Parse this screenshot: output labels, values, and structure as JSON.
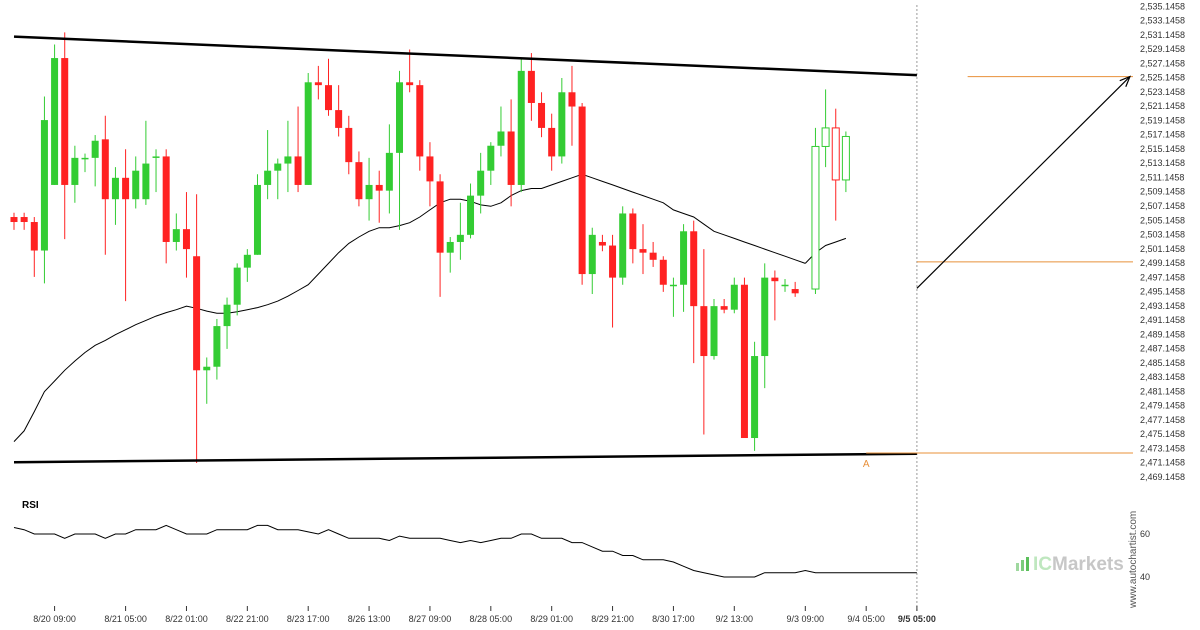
{
  "chart_data": {
    "type": "candlestick",
    "instrument": "",
    "colors": {
      "up": "#33cc33",
      "down": "#ff2222",
      "moving_average": "#000000",
      "trendline": "#000000",
      "level_line": "#e8903a",
      "projection_arrow": "#000000",
      "rsi_line": "#000000",
      "background": "#ffffff"
    },
    "price_axis": {
      "min": 2469.1458,
      "max": 2535.1458,
      "step": 2,
      "ticks": [
        "2,535.1458",
        "2,533.1458",
        "2,531.1458",
        "2,529.1458",
        "2,527.1458",
        "2,525.1458",
        "2,523.1458",
        "2,521.1458",
        "2,519.1458",
        "2,517.1458",
        "2,515.1458",
        "2,513.1458",
        "2,511.1458",
        "2,509.1458",
        "2,507.1458",
        "2,505.1458",
        "2,503.1458",
        "2,501.1458",
        "2,499.1458",
        "2,497.1458",
        "2,495.1458",
        "2,493.1458",
        "2,491.1458",
        "2,489.1458",
        "2,487.1458",
        "2,485.1458",
        "2,483.1458",
        "2,481.1458",
        "2,479.1458",
        "2,477.1458",
        "2,475.1458",
        "2,473.1458",
        "2,471.1458",
        "2,469.1458"
      ]
    },
    "time_axis": {
      "labels": [
        {
          "label": "8/20 09:00",
          "bar": 4
        },
        {
          "label": "8/21 05:00",
          "bar": 11
        },
        {
          "label": "8/22 01:00",
          "bar": 17
        },
        {
          "label": "8/22 21:00",
          "bar": 23
        },
        {
          "label": "8/23 17:00",
          "bar": 29
        },
        {
          "label": "8/26 13:00",
          "bar": 35
        },
        {
          "label": "8/27 09:00",
          "bar": 41
        },
        {
          "label": "8/28 05:00",
          "bar": 47
        },
        {
          "label": "8/29 01:00",
          "bar": 53
        },
        {
          "label": "8/29 21:00",
          "bar": 59
        },
        {
          "label": "8/30 17:00",
          "bar": 65
        },
        {
          "label": "9/2 13:00",
          "bar": 71
        },
        {
          "label": "9/3 09:00",
          "bar": 78
        },
        {
          "label": "9/4 05:00",
          "bar": 84
        },
        {
          "label": "9/5 05:00",
          "bar": 89,
          "bold": true
        }
      ]
    },
    "candles": [
      {
        "o": 2505.6,
        "h": 2506.2,
        "l": 2503.8,
        "c": 2504.9
      },
      {
        "o": 2505.6,
        "h": 2506.2,
        "l": 2503.8,
        "c": 2504.9
      },
      {
        "o": 2504.9,
        "h": 2505.6,
        "l": 2497.2,
        "c": 2500.9
      },
      {
        "o": 2500.9,
        "h": 2522.5,
        "l": 2496.3,
        "c": 2519.2
      },
      {
        "o": 2510.1,
        "h": 2529.8,
        "l": 2510.1,
        "c": 2527.9
      },
      {
        "o": 2527.9,
        "h": 2531.5,
        "l": 2502.5,
        "c": 2510.1
      },
      {
        "o": 2510.1,
        "h": 2515.6,
        "l": 2507.6,
        "c": 2513.9
      },
      {
        "o": 2513.9,
        "h": 2514.5,
        "l": 2511.9,
        "c": 2513.9
      },
      {
        "o": 2513.9,
        "h": 2517.1,
        "l": 2509.9,
        "c": 2516.3
      },
      {
        "o": 2516.5,
        "h": 2519.8,
        "l": 2500.3,
        "c": 2508.1
      },
      {
        "o": 2508.1,
        "h": 2512.6,
        "l": 2504.5,
        "c": 2511.1
      },
      {
        "o": 2511.1,
        "h": 2515.1,
        "l": 2493.8,
        "c": 2508.1
      },
      {
        "o": 2508.1,
        "h": 2514.1,
        "l": 2506.8,
        "c": 2512.1
      },
      {
        "o": 2508.1,
        "h": 2519.1,
        "l": 2507.3,
        "c": 2513.1
      },
      {
        "o": 2514.1,
        "h": 2515.1,
        "l": 2509.1,
        "c": 2514.1
      },
      {
        "o": 2514.1,
        "h": 2515.1,
        "l": 2499.1,
        "c": 2502.1
      },
      {
        "o": 2502.1,
        "h": 2506.1,
        "l": 2500.9,
        "c": 2503.9
      },
      {
        "o": 2503.9,
        "h": 2509.1,
        "l": 2497.1,
        "c": 2501.1
      },
      {
        "o": 2500.1,
        "h": 2508.8,
        "l": 2471.1,
        "c": 2484.1
      },
      {
        "o": 2484.1,
        "h": 2485.9,
        "l": 2479.4,
        "c": 2484.6
      },
      {
        "o": 2484.6,
        "h": 2491.3,
        "l": 2482.8,
        "c": 2490.3
      },
      {
        "o": 2490.3,
        "h": 2494.3,
        "l": 2487.1,
        "c": 2493.3
      },
      {
        "o": 2493.3,
        "h": 2499.1,
        "l": 2491.8,
        "c": 2498.5
      },
      {
        "o": 2498.5,
        "h": 2501.1,
        "l": 2496.5,
        "c": 2500.3
      },
      {
        "o": 2500.3,
        "h": 2511.6,
        "l": 2500.3,
        "c": 2510.1
      },
      {
        "o": 2510.1,
        "h": 2517.8,
        "l": 2508.1,
        "c": 2512.1
      },
      {
        "o": 2512.1,
        "h": 2513.8,
        "l": 2508.1,
        "c": 2513.1
      },
      {
        "o": 2513.1,
        "h": 2519.1,
        "l": 2509.1,
        "c": 2514.1
      },
      {
        "o": 2514.1,
        "h": 2521.1,
        "l": 2509.1,
        "c": 2510.1
      },
      {
        "o": 2510.1,
        "h": 2525.8,
        "l": 2510.1,
        "c": 2524.5
      },
      {
        "o": 2524.5,
        "h": 2526.8,
        "l": 2522.1,
        "c": 2524.1
      },
      {
        "o": 2524.1,
        "h": 2527.8,
        "l": 2519.8,
        "c": 2520.6
      },
      {
        "o": 2520.6,
        "h": 2524.1,
        "l": 2516.9,
        "c": 2518.1
      },
      {
        "o": 2518.1,
        "h": 2519.8,
        "l": 2511.6,
        "c": 2513.3
      },
      {
        "o": 2513.3,
        "h": 2514.8,
        "l": 2507.1,
        "c": 2508.1
      },
      {
        "o": 2508.1,
        "h": 2513.9,
        "l": 2505.1,
        "c": 2510.1
      },
      {
        "o": 2510.1,
        "h": 2512.1,
        "l": 2504.8,
        "c": 2509.3
      },
      {
        "o": 2509.3,
        "h": 2518.6,
        "l": 2506.1,
        "c": 2514.6
      },
      {
        "o": 2514.6,
        "h": 2526.1,
        "l": 2503.8,
        "c": 2524.5
      },
      {
        "o": 2524.5,
        "h": 2529.1,
        "l": 2523.1,
        "c": 2524.1
      },
      {
        "o": 2524.1,
        "h": 2524.8,
        "l": 2512.1,
        "c": 2514.1
      },
      {
        "o": 2514.1,
        "h": 2516.1,
        "l": 2507.1,
        "c": 2510.6
      },
      {
        "o": 2510.6,
        "h": 2511.6,
        "l": 2494.4,
        "c": 2500.6
      },
      {
        "o": 2500.6,
        "h": 2502.8,
        "l": 2497.8,
        "c": 2502.1
      },
      {
        "o": 2502.1,
        "h": 2507.6,
        "l": 2499.6,
        "c": 2503.1
      },
      {
        "o": 2503.1,
        "h": 2510.3,
        "l": 2502.6,
        "c": 2508.6
      },
      {
        "o": 2508.6,
        "h": 2514.6,
        "l": 2506.1,
        "c": 2512.1
      },
      {
        "o": 2512.1,
        "h": 2516.1,
        "l": 2510.1,
        "c": 2515.6
      },
      {
        "o": 2515.6,
        "h": 2521.1,
        "l": 2514.1,
        "c": 2517.6
      },
      {
        "o": 2517.6,
        "h": 2522.1,
        "l": 2507.1,
        "c": 2510.1
      },
      {
        "o": 2510.1,
        "h": 2527.8,
        "l": 2509.1,
        "c": 2526.1
      },
      {
        "o": 2526.1,
        "h": 2528.6,
        "l": 2519.1,
        "c": 2521.6
      },
      {
        "o": 2521.6,
        "h": 2523.1,
        "l": 2516.8,
        "c": 2518.1
      },
      {
        "o": 2518.1,
        "h": 2520.1,
        "l": 2512.1,
        "c": 2514.1
      },
      {
        "o": 2514.1,
        "h": 2525.1,
        "l": 2513.1,
        "c": 2523.1
      },
      {
        "o": 2523.1,
        "h": 2526.8,
        "l": 2515.6,
        "c": 2521.1
      },
      {
        "o": 2521.1,
        "h": 2521.6,
        "l": 2496.1,
        "c": 2497.6
      },
      {
        "o": 2497.6,
        "h": 2504.1,
        "l": 2494.8,
        "c": 2503.1
      },
      {
        "o": 2502.1,
        "h": 2503.1,
        "l": 2500.8,
        "c": 2501.6
      },
      {
        "o": 2501.6,
        "h": 2503.1,
        "l": 2490.1,
        "c": 2497.1
      },
      {
        "o": 2497.1,
        "h": 2507.1,
        "l": 2496.1,
        "c": 2506.1
      },
      {
        "o": 2506.1,
        "h": 2506.8,
        "l": 2499.1,
        "c": 2501.1
      },
      {
        "o": 2501.1,
        "h": 2504.6,
        "l": 2497.6,
        "c": 2500.6
      },
      {
        "o": 2500.6,
        "h": 2502.1,
        "l": 2498.6,
        "c": 2499.6
      },
      {
        "o": 2499.6,
        "h": 2500.1,
        "l": 2495.1,
        "c": 2496.1
      },
      {
        "o": 2496.1,
        "h": 2497.1,
        "l": 2491.6,
        "c": 2496.1
      },
      {
        "o": 2496.1,
        "h": 2504.6,
        "l": 2492.3,
        "c": 2503.6
      },
      {
        "o": 2503.6,
        "h": 2505.1,
        "l": 2485.1,
        "c": 2493.1
      },
      {
        "o": 2493.1,
        "h": 2501.1,
        "l": 2475.1,
        "c": 2486.1
      },
      {
        "o": 2486.1,
        "h": 2494.1,
        "l": 2485.6,
        "c": 2493.1
      },
      {
        "o": 2493.1,
        "h": 2494.1,
        "l": 2492.1,
        "c": 2492.6
      },
      {
        "o": 2492.6,
        "h": 2497.1,
        "l": 2492.1,
        "c": 2496.1
      },
      {
        "o": 2496.1,
        "h": 2497.1,
        "l": 2474.6,
        "c": 2474.6
      },
      {
        "o": 2474.6,
        "h": 2488.1,
        "l": 2472.8,
        "c": 2486.1
      },
      {
        "o": 2486.1,
        "h": 2499.1,
        "l": 2481.6,
        "c": 2497.1
      },
      {
        "o": 2497.1,
        "h": 2498.1,
        "l": 2491.1,
        "c": 2496.6
      },
      {
        "o": 2496.1,
        "h": 2496.9,
        "l": 2495.1,
        "c": 2496.1
      },
      {
        "o": 2495.5,
        "h": 2496.5,
        "l": 2494.4,
        "c": 2494.9
      }
    ],
    "projection_candles": [
      {
        "o": 2495.5,
        "h": 2518.1,
        "l": 2494.8,
        "c": 2515.5
      },
      {
        "o": 2515.5,
        "h": 2523.5,
        "l": 2512.6,
        "c": 2518.1
      },
      {
        "o": 2518.1,
        "h": 2520.8,
        "l": 2505.1,
        "c": 2510.8
      },
      {
        "o": 2510.8,
        "h": 2517.6,
        "l": 2509.1,
        "c": 2516.9
      }
    ],
    "moving_average": [
      2474.1,
      2475.6,
      2478.3,
      2481.1,
      2482.6,
      2484.1,
      2485.4,
      2486.6,
      2487.6,
      2488.3,
      2489.1,
      2489.8,
      2490.5,
      2491.1,
      2491.7,
      2492.2,
      2492.6,
      2493.1,
      2492.8,
      2492.4,
      2492.1,
      2492.1,
      2492.3,
      2492.6,
      2492.9,
      2493.3,
      2493.8,
      2494.5,
      2495.3,
      2496.1,
      2497.6,
      2499.1,
      2500.6,
      2501.9,
      2502.8,
      2503.6,
      2504.1,
      2504.1,
      2504.4,
      2504.8,
      2505.6,
      2506.6,
      2507.6,
      2508.1,
      2508.1,
      2507.8,
      2507.3,
      2507.1,
      2507.6,
      2508.6,
      2509.3,
      2509.6,
      2509.6,
      2510.1,
      2510.6,
      2511.1,
      2511.6,
      2511.1,
      2510.6,
      2510.1,
      2509.6,
      2509.1,
      2508.6,
      2508.1,
      2507.6,
      2506.6,
      2506.1,
      2505.6,
      2504.6,
      2503.6,
      2503.1,
      2502.6,
      2502.1,
      2501.6,
      2501.1,
      2500.6,
      2500.1,
      2499.6,
      2499.1
    ],
    "projection_ma": [
      2500.6,
      2501.6,
      2502.1,
      2502.6
    ],
    "trendlines": [
      {
        "name": "resistance",
        "from": {
          "bar": 0,
          "price": 2530.9
        },
        "to": {
          "bar": 89,
          "price": 2525.5
        }
      },
      {
        "name": "support",
        "from": {
          "bar": 0,
          "price": 2471.2
        },
        "to": {
          "bar": 89,
          "price": 2472.4
        }
      }
    ],
    "levels": [
      {
        "price": 2525.3,
        "from_bar": 94
      },
      {
        "price": 2499.3,
        "from_bar": 89
      },
      {
        "price": 2472.5,
        "from_bar": 84
      }
    ],
    "projection_arrow": {
      "from": {
        "bar": 89,
        "price": 2495.6
      },
      "to": {
        "bar": 110,
        "price": 2525.3
      }
    },
    "annotation": {
      "text": "A",
      "bar": 84
    },
    "rsi": {
      "label": "RSI",
      "ticks": [
        60,
        40
      ],
      "range": [
        35,
        68
      ],
      "values": [
        63,
        62,
        60,
        60,
        60,
        58,
        60,
        60,
        60,
        58,
        60,
        60,
        62,
        62,
        62,
        64,
        62,
        60,
        60,
        60,
        62,
        62,
        62,
        62,
        64,
        64,
        62,
        62,
        62,
        61,
        60,
        62,
        60,
        58,
        58,
        58,
        58,
        57,
        59,
        58,
        58,
        58,
        58,
        57,
        56,
        57,
        56,
        57,
        58,
        58,
        60,
        60,
        58,
        58,
        58,
        56,
        56,
        54,
        52,
        52,
        50,
        50,
        48,
        48,
        48,
        47,
        45,
        43,
        42,
        41,
        40,
        40,
        40,
        40,
        42,
        42,
        42,
        42,
        43,
        42,
        42,
        42,
        42,
        42,
        42,
        42,
        42,
        42,
        42,
        42
      ]
    },
    "vertical_marker": {
      "bar": 89,
      "label": "9/5 05:00"
    },
    "brand": {
      "name": "ICMarkets",
      "prefix": "IC",
      "suffix": "Markets",
      "watermark": "www.autochartist.com"
    }
  }
}
